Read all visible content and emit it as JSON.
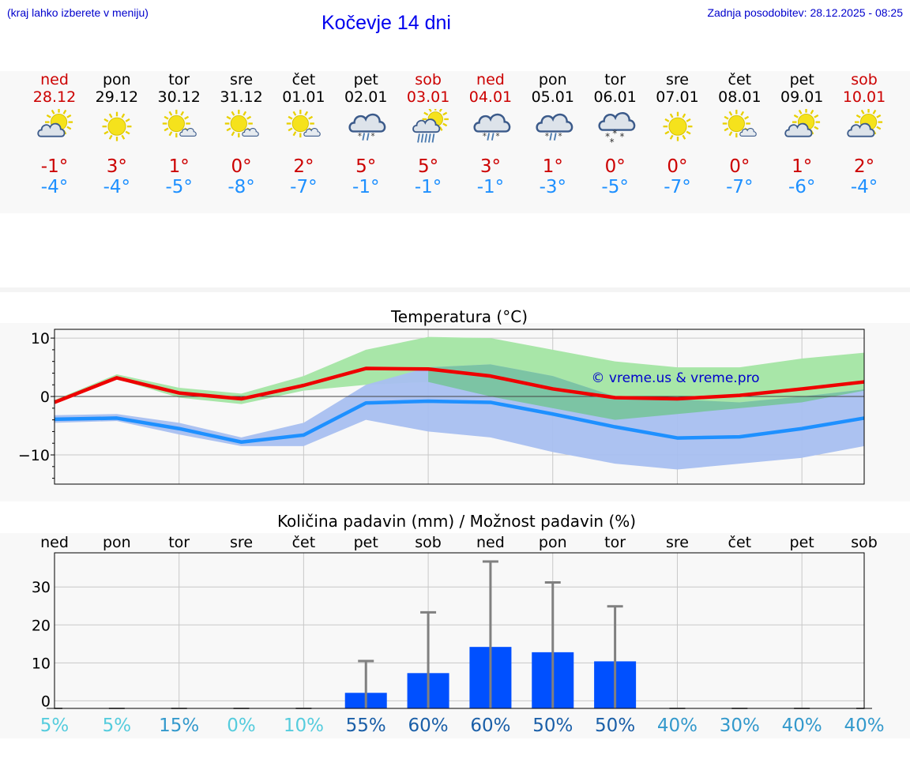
{
  "header": {
    "hint": "(kraj lahko izberete v meniju)",
    "title": "Kočevje 14 dni",
    "updated": "Zadnja posodobitev: 28.12.2025 - 08:25"
  },
  "colors": {
    "weekend": "#cc0000",
    "max_line": "#ee0000",
    "min_line": "#1e90ff",
    "max_band": "#a8e6a8",
    "min_band": "#a8bff0",
    "overlap_band": "#7cc4a4",
    "bar": "#0050ff",
    "whisker": "#808080"
  },
  "days": [
    {
      "name": "ned",
      "date": "28.12",
      "weekend": true,
      "icon": "partly-cloudy-icon",
      "tmax": "-1°",
      "tmin": "-4°"
    },
    {
      "name": "pon",
      "date": "29.12",
      "weekend": false,
      "icon": "sunny-icon",
      "tmax": "3°",
      "tmin": "-4°"
    },
    {
      "name": "tor",
      "date": "30.12",
      "weekend": false,
      "icon": "sun-small-cloud-icon",
      "tmax": "1°",
      "tmin": "-5°"
    },
    {
      "name": "sre",
      "date": "31.12",
      "weekend": false,
      "icon": "sun-small-cloud-icon",
      "tmax": "0°",
      "tmin": "-8°"
    },
    {
      "name": "čet",
      "date": "01.01",
      "weekend": false,
      "icon": "sun-small-cloud-icon",
      "tmax": "2°",
      "tmin": "-7°"
    },
    {
      "name": "pet",
      "date": "02.01",
      "weekend": false,
      "icon": "cloud-sleet-icon",
      "tmax": "5°",
      "tmin": "-1°"
    },
    {
      "name": "sob",
      "date": "03.01",
      "weekend": true,
      "icon": "sun-rain-icon",
      "tmax": "5°",
      "tmin": "-1°"
    },
    {
      "name": "ned",
      "date": "04.01",
      "weekend": true,
      "icon": "cloud-sleet-icon",
      "tmax": "3°",
      "tmin": "-1°"
    },
    {
      "name": "pon",
      "date": "05.01",
      "weekend": false,
      "icon": "cloud-sleet-icon",
      "tmax": "1°",
      "tmin": "-3°"
    },
    {
      "name": "tor",
      "date": "06.01",
      "weekend": false,
      "icon": "cloud-snow-icon",
      "tmax": "0°",
      "tmin": "-5°"
    },
    {
      "name": "sre",
      "date": "07.01",
      "weekend": false,
      "icon": "sunny-icon",
      "tmax": "0°",
      "tmin": "-7°"
    },
    {
      "name": "čet",
      "date": "08.01",
      "weekend": false,
      "icon": "sun-small-cloud-icon",
      "tmax": "0°",
      "tmin": "-7°"
    },
    {
      "name": "pet",
      "date": "09.01",
      "weekend": false,
      "icon": "partly-cloudy-icon",
      "tmax": "1°",
      "tmin": "-6°"
    },
    {
      "name": "sob",
      "date": "10.01",
      "weekend": true,
      "icon": "partly-cloudy-icon",
      "tmax": "2°",
      "tmin": "-4°"
    }
  ],
  "chart_data": [
    {
      "type": "line",
      "title": "Temperatura (°C)",
      "watermark": "© vreme.us & vreme.pro",
      "ylim": [
        -15,
        11.5
      ],
      "yticks": [
        10,
        0,
        -10
      ],
      "ytick_labels": [
        "10",
        "0",
        "−10"
      ],
      "x": [
        0,
        1,
        2,
        3,
        4,
        5,
        6,
        7,
        8,
        9,
        10,
        11,
        12,
        13
      ],
      "series": [
        {
          "name": "max",
          "values": [
            -1,
            3.2,
            0.6,
            -0.4,
            1.9,
            4.8,
            4.7,
            3.5,
            1.3,
            -0.2,
            -0.4,
            0.2,
            1.3,
            2.5
          ]
        },
        {
          "name": "min",
          "values": [
            -3.9,
            -3.7,
            -5.5,
            -7.8,
            -6.6,
            -1.1,
            -0.8,
            -1.0,
            -3.0,
            -5.2,
            -7.1,
            -6.9,
            -5.5,
            -3.7
          ]
        }
      ],
      "bands": [
        {
          "name": "max_range",
          "low": [
            -1,
            3.0,
            -0.2,
            -1.3,
            1.0,
            2.0,
            2.5,
            0.0,
            -2.0,
            -4.0,
            -2.0,
            -2.0,
            -1.0,
            1.0
          ],
          "high": [
            -0.6,
            3.8,
            1.5,
            0.5,
            3.5,
            8.0,
            10.2,
            10.0,
            8.0,
            6.0,
            5.0,
            5.0,
            6.5,
            7.5
          ]
        },
        {
          "name": "min_range",
          "low": [
            -4.5,
            -4.2,
            -6.5,
            -8.5,
            -8.5,
            -4.0,
            -6.0,
            -7.0,
            -9.5,
            -11.5,
            -12.5,
            -11.5,
            -10.5,
            -8.5
          ],
          "high": [
            -3.2,
            -3.0,
            -4.5,
            -7.0,
            -4.5,
            2.0,
            5.0,
            5.5,
            3.5,
            0.0,
            -2.0,
            -1.0,
            0.0,
            1.2
          ]
        }
      ]
    },
    {
      "type": "bar",
      "title": "Količina padavin (mm) / Možnost padavin (%)",
      "categories": [
        "ned",
        "pon",
        "tor",
        "sre",
        "čet",
        "pet",
        "sob",
        "ned",
        "pon",
        "tor",
        "sre",
        "čet",
        "pet",
        "sob"
      ],
      "ylim": [
        -2,
        39
      ],
      "yticks": [
        30,
        20,
        10,
        0
      ],
      "values": [
        0,
        0,
        0,
        0,
        0,
        2.1,
        7.3,
        14.2,
        12.8,
        10.4,
        0,
        0,
        0,
        0
      ],
      "error_high": [
        0,
        0,
        0,
        0,
        0,
        10.5,
        23.3,
        36.7,
        31.2,
        24.9,
        0,
        0,
        0,
        0
      ],
      "chance_labels": [
        "5%",
        "5%",
        "15%",
        "0%",
        "10%",
        "55%",
        "60%",
        "60%",
        "50%",
        "50%",
        "40%",
        "30%",
        "40%",
        "40%"
      ],
      "chance_colors": [
        "#55ccdd",
        "#55ccdd",
        "#3399cc",
        "#55ccdd",
        "#55ccdd",
        "#1a5fa8",
        "#1a5fa8",
        "#1a5fa8",
        "#1a5fa8",
        "#1a5fa8",
        "#3399cc",
        "#3399cc",
        "#3399cc",
        "#3399cc"
      ]
    }
  ]
}
